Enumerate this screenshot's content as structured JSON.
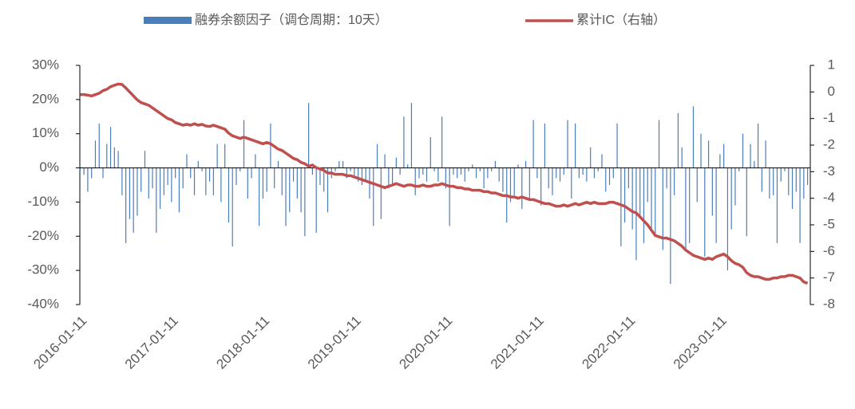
{
  "chart_data": {
    "type": "bar_line",
    "categories": [
      "2016-01-11",
      null,
      null,
      null,
      null,
      null,
      null,
      null,
      null,
      null,
      null,
      null,
      null,
      null,
      null,
      null,
      null,
      null,
      null,
      null,
      null,
      null,
      null,
      null,
      "2017-01-11",
      null,
      null,
      null,
      null,
      null,
      null,
      null,
      null,
      null,
      null,
      null,
      null,
      null,
      null,
      null,
      null,
      null,
      null,
      null,
      null,
      null,
      null,
      null,
      "2018-01-11",
      null,
      null,
      null,
      null,
      null,
      null,
      null,
      null,
      null,
      null,
      null,
      null,
      null,
      null,
      null,
      null,
      null,
      null,
      null,
      null,
      null,
      null,
      null,
      "2019-01-11",
      null,
      null,
      null,
      null,
      null,
      null,
      null,
      null,
      null,
      null,
      null,
      null,
      null,
      null,
      null,
      null,
      null,
      null,
      null,
      null,
      null,
      null,
      null,
      "2020-01-11",
      null,
      null,
      null,
      null,
      null,
      null,
      null,
      null,
      null,
      null,
      null,
      null,
      null,
      null,
      null,
      null,
      null,
      null,
      null,
      null,
      null,
      null,
      null,
      "2021-01-11",
      null,
      null,
      null,
      null,
      null,
      null,
      null,
      null,
      null,
      null,
      null,
      null,
      null,
      null,
      null,
      null,
      null,
      null,
      null,
      null,
      null,
      null,
      null,
      "2022-01-11",
      null,
      null,
      null,
      null,
      null,
      null,
      null,
      null,
      null,
      null,
      null,
      null,
      null,
      null,
      null,
      null,
      null,
      null,
      null,
      null,
      null,
      null,
      null,
      "2023-01-11",
      null,
      null,
      null,
      null,
      null,
      null,
      null,
      null,
      null,
      null,
      null,
      null,
      null,
      null,
      null,
      null,
      null,
      null,
      null,
      null,
      null,
      null,
      null
    ],
    "series": [
      {
        "name": "融券余额因子（调仓周期：10天）",
        "kind": "bar",
        "color": "#4a7ebb",
        "values": [
          -1,
          -2,
          -7,
          -3,
          8,
          13,
          -3,
          7,
          12,
          6,
          5,
          -8,
          -22,
          -15,
          -19,
          -14,
          -7,
          5,
          -9,
          -6,
          -19,
          -12,
          -8,
          -5,
          -10,
          -3,
          -13,
          -6,
          4,
          -3,
          -8,
          2,
          -1,
          -8,
          -4,
          -8,
          7,
          -10,
          7,
          -16,
          -23,
          -5,
          -1,
          14,
          -9,
          -3,
          4,
          -17,
          -9,
          -7,
          13,
          -6,
          2,
          -8,
          -17,
          -13,
          -4,
          -9,
          -13,
          -20,
          19,
          -2,
          -19,
          -5,
          -7,
          -13,
          -3,
          -1,
          2,
          2,
          -3,
          -1,
          -3,
          -4,
          -5,
          -4,
          -9,
          -17,
          7,
          -15,
          4,
          -6,
          -5,
          3,
          -2,
          15,
          1,
          19,
          -8,
          -3,
          -2,
          -4,
          9,
          -1,
          -4,
          15,
          -6,
          -17,
          -2,
          -3,
          -2,
          -4,
          -1,
          1,
          -3,
          -1,
          -6,
          -3,
          -1,
          2,
          -4,
          -7,
          -16,
          -10,
          -8,
          1,
          -12,
          2,
          -9,
          14,
          -3,
          -11,
          13,
          -6,
          -8,
          -3,
          -4,
          -2,
          14,
          -9,
          13,
          -3,
          -2,
          -4,
          6,
          -3,
          -1,
          4,
          -7,
          -5,
          -3,
          13,
          -23,
          -16,
          -6,
          -18,
          -27,
          -14,
          -22,
          -10,
          -18,
          -20,
          14,
          -24,
          -6,
          -34,
          -8,
          16,
          6,
          -24,
          -22,
          18,
          -10,
          10,
          -26,
          8,
          -14,
          -22,
          4,
          7,
          -30,
          -18,
          -11,
          -1,
          10,
          -20,
          7,
          2,
          13,
          -7,
          8,
          -9,
          -8,
          -22,
          -4,
          -1,
          -8,
          -12,
          -7,
          -22,
          -9,
          -5
        ]
      },
      {
        "name": "累计IC（右轴）",
        "kind": "line",
        "axis": "y2",
        "color": "#c0504d",
        "values": [
          -0.1,
          -0.1,
          -0.12,
          -0.15,
          -0.1,
          -0.05,
          0.05,
          0.1,
          0.2,
          0.25,
          0.3,
          0.28,
          0.15,
          0.0,
          -0.15,
          -0.3,
          -0.4,
          -0.45,
          -0.5,
          -0.6,
          -0.7,
          -0.8,
          -0.9,
          -1.0,
          -1.05,
          -1.15,
          -1.2,
          -1.25,
          -1.22,
          -1.25,
          -1.2,
          -1.25,
          -1.22,
          -1.28,
          -1.3,
          -1.25,
          -1.3,
          -1.35,
          -1.4,
          -1.55,
          -1.65,
          -1.7,
          -1.75,
          -1.7,
          -1.75,
          -1.8,
          -1.85,
          -1.9,
          -1.95,
          -1.9,
          -1.95,
          -2.05,
          -2.15,
          -2.2,
          -2.3,
          -2.4,
          -2.5,
          -2.55,
          -2.65,
          -2.7,
          -2.8,
          -2.75,
          -2.85,
          -2.9,
          -2.95,
          -3.05,
          -3.05,
          -3.1,
          -3.1,
          -3.1,
          -3.15,
          -3.15,
          -3.2,
          -3.25,
          -3.3,
          -3.35,
          -3.4,
          -3.45,
          -3.5,
          -3.55,
          -3.6,
          -3.55,
          -3.5,
          -3.45,
          -3.5,
          -3.55,
          -3.5,
          -3.5,
          -3.55,
          -3.55,
          -3.5,
          -3.55,
          -3.55,
          -3.5,
          -3.5,
          -3.45,
          -3.5,
          -3.55,
          -3.55,
          -3.6,
          -3.6,
          -3.65,
          -3.65,
          -3.7,
          -3.7,
          -3.7,
          -3.75,
          -3.75,
          -3.8,
          -3.8,
          -3.85,
          -3.9,
          -3.9,
          -3.95,
          -3.95,
          -4.0,
          -3.95,
          -4.0,
          -4.05,
          -4.05,
          -4.1,
          -4.15,
          -4.2,
          -4.2,
          -4.25,
          -4.3,
          -4.3,
          -4.25,
          -4.3,
          -4.25,
          -4.2,
          -4.25,
          -4.2,
          -4.15,
          -4.2,
          -4.15,
          -4.2,
          -4.2,
          -4.2,
          -4.15,
          -4.15,
          -4.2,
          -4.25,
          -4.3,
          -4.4,
          -4.5,
          -4.55,
          -4.7,
          -4.85,
          -5.0,
          -5.2,
          -5.4,
          -5.45,
          -5.5,
          -5.5,
          -5.55,
          -5.6,
          -5.7,
          -5.8,
          -5.95,
          -6.05,
          -6.15,
          -6.2,
          -6.25,
          -6.3,
          -6.25,
          -6.3,
          -6.2,
          -6.15,
          -6.1,
          -6.2,
          -6.35,
          -6.45,
          -6.5,
          -6.6,
          -6.8,
          -6.9,
          -6.95,
          -6.95,
          -7.0,
          -7.05,
          -7.05,
          -7.0,
          -7.0,
          -6.95,
          -6.95,
          -6.9,
          -6.9,
          -6.95,
          -7.0,
          -7.15,
          -7.2
        ]
      }
    ],
    "ylim": [
      -40,
      30
    ],
    "yticks": [
      {
        "value": -40,
        "label": "-40%"
      },
      {
        "value": -30,
        "label": "-30%"
      },
      {
        "value": -20,
        "label": "-20%"
      },
      {
        "value": -10,
        "label": "-10%"
      },
      {
        "value": 0,
        "label": "0%"
      },
      {
        "value": 10,
        "label": "10%"
      },
      {
        "value": 20,
        "label": "20%"
      },
      {
        "value": 30,
        "label": "30%"
      }
    ],
    "y2lim": [
      -8,
      1
    ],
    "y2ticks": [
      -8,
      -7,
      -6,
      -5,
      -4,
      -3,
      -2,
      -1,
      0,
      1
    ],
    "legend": "top"
  }
}
